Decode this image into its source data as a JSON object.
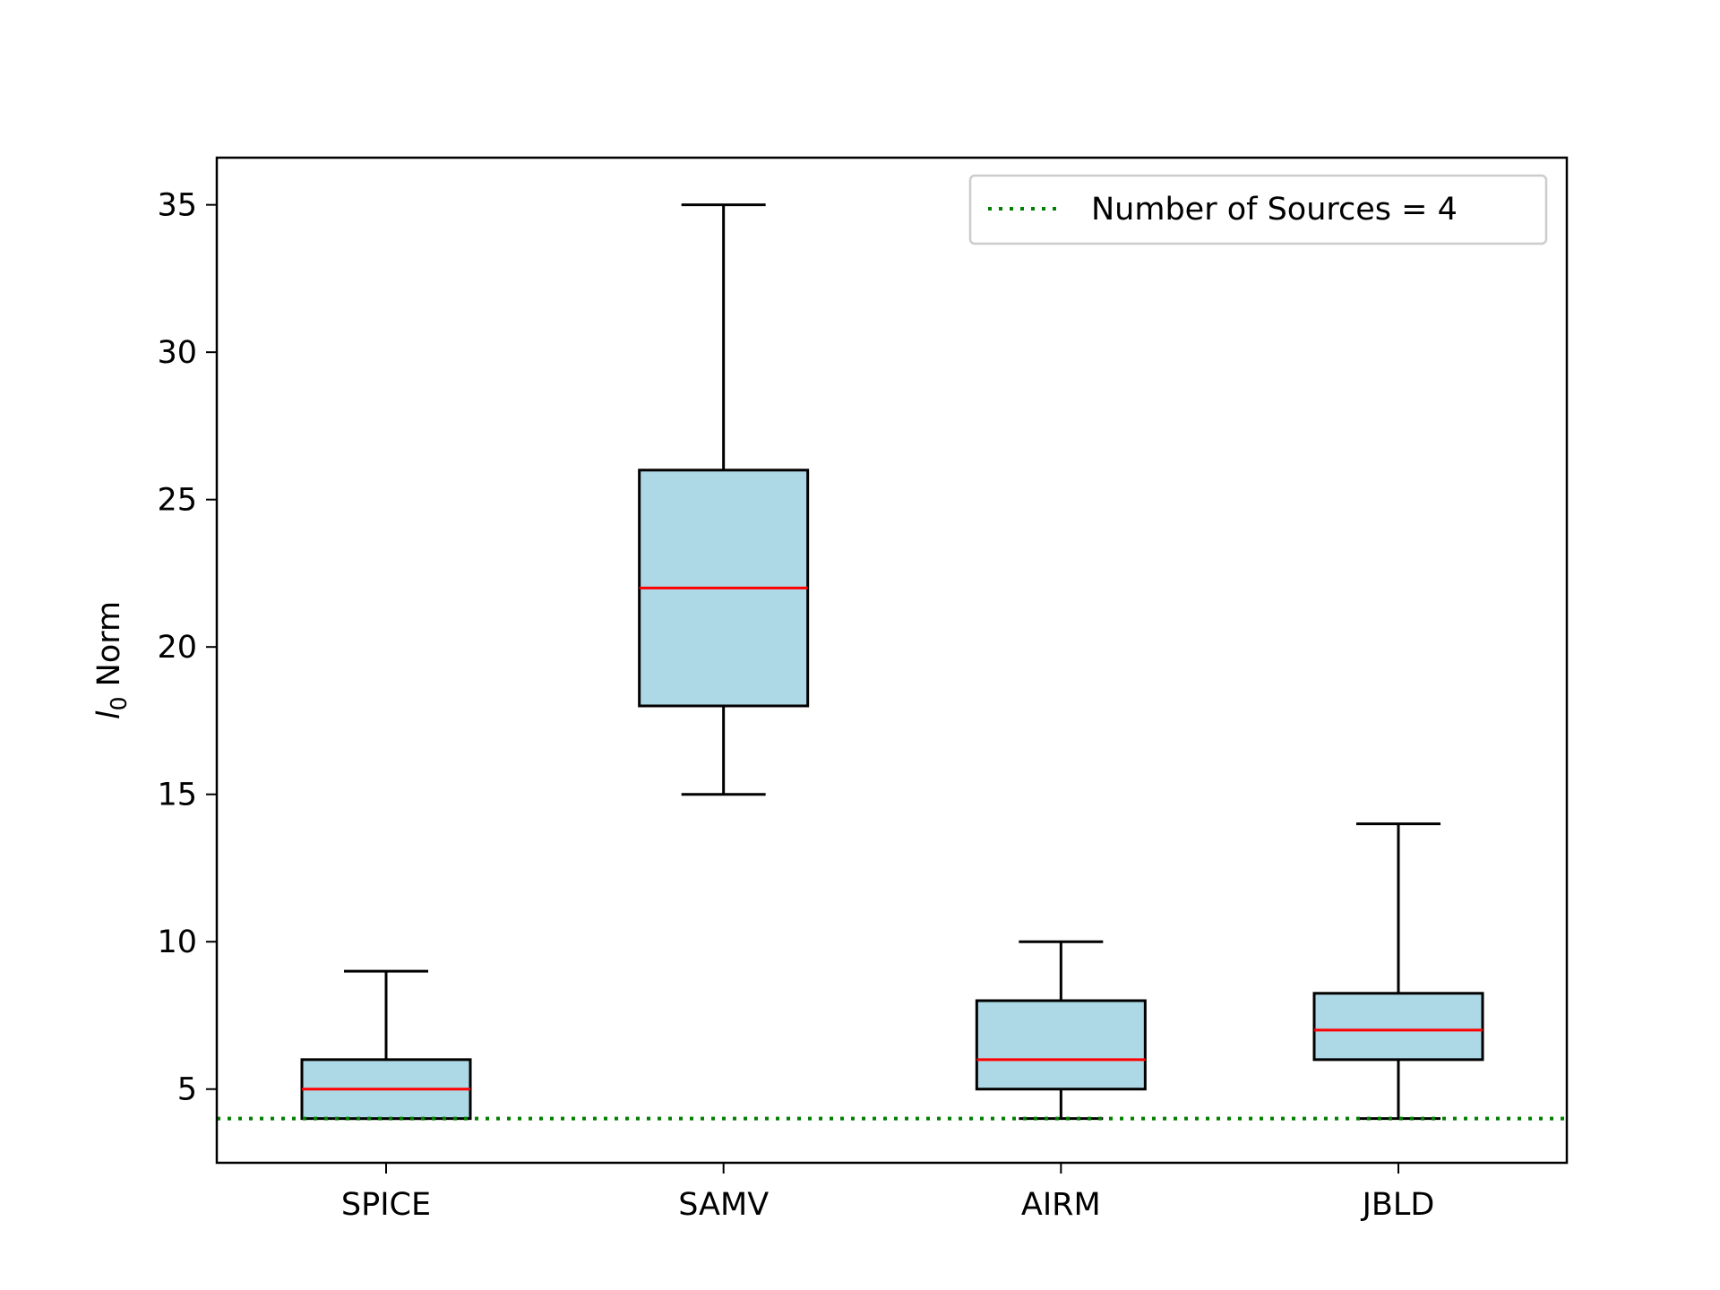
{
  "chart_data": {
    "type": "boxplot",
    "title": "",
    "xlabel": "",
    "ylabel": {
      "base": "l",
      "subscript": "0",
      "rest": " Norm"
    },
    "categories": [
      "SPICE",
      "SAMV",
      "AIRM",
      "JBLD"
    ],
    "boxes": [
      {
        "label": "SPICE",
        "whisker_low": 4,
        "q1": 4,
        "median": 5,
        "q3": 6,
        "whisker_high": 9
      },
      {
        "label": "SAMV",
        "whisker_low": 15,
        "q1": 18,
        "median": 22,
        "q3": 26,
        "whisker_high": 35
      },
      {
        "label": "AIRM",
        "whisker_low": 4,
        "q1": 5,
        "median": 6,
        "q3": 8,
        "whisker_high": 10
      },
      {
        "label": "JBLD",
        "whisker_low": 4,
        "q1": 6,
        "median": 7,
        "q3": 8.25,
        "whisker_high": 14
      }
    ],
    "reference_line": {
      "value": 4,
      "label": "Number of Sources = 4",
      "style": "dotted",
      "color": "#008000"
    },
    "ylim": [
      2.5,
      36.6
    ],
    "yticks": [
      5,
      10,
      15,
      20,
      25,
      30,
      35
    ],
    "grid": false,
    "legend_position": "top-right",
    "colors": {
      "box_fill": "#add8e6",
      "median": "#ff0000",
      "edge": "#000000"
    }
  }
}
